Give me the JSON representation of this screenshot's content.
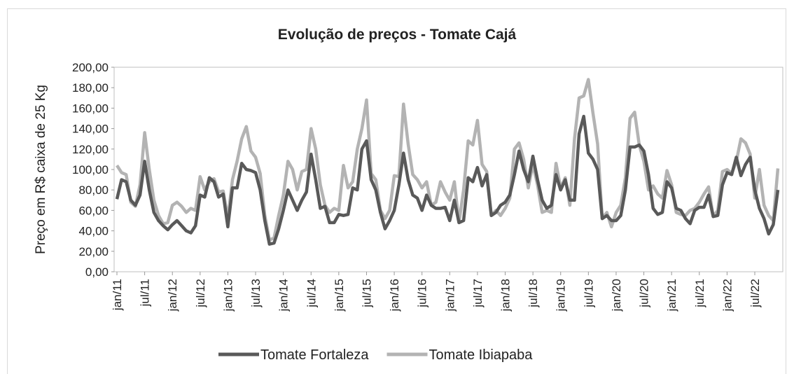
{
  "chart_data": {
    "type": "line",
    "title": "Evolução de preços - Tomate Cajá",
    "y_label": "Preço em R$ caixa de 25 Kg",
    "categories": [
      "jan/11",
      null,
      null,
      null,
      null,
      null,
      "jul/11",
      null,
      null,
      null,
      null,
      null,
      "jan/12",
      null,
      null,
      null,
      null,
      null,
      "jul/12",
      null,
      null,
      null,
      null,
      null,
      "jan/13",
      null,
      null,
      null,
      null,
      null,
      "jul/13",
      null,
      null,
      null,
      null,
      null,
      "jan/14",
      null,
      null,
      null,
      null,
      null,
      "jul/14",
      null,
      null,
      null,
      null,
      null,
      "jan/15",
      null,
      null,
      null,
      null,
      null,
      "jul/15",
      null,
      null,
      null,
      null,
      null,
      "jan/16",
      null,
      null,
      null,
      null,
      null,
      "jul/16",
      null,
      null,
      null,
      null,
      null,
      "jan/17",
      null,
      null,
      null,
      null,
      null,
      "jul/17",
      null,
      null,
      null,
      null,
      null,
      "jan/18",
      null,
      null,
      null,
      null,
      null,
      "jul/18",
      null,
      null,
      null,
      null,
      null,
      "jan/19",
      null,
      null,
      null,
      null,
      null,
      "jul/19",
      null,
      null,
      null,
      null,
      null,
      "jan/20",
      null,
      null,
      null,
      null,
      null,
      "jul/20",
      null,
      null,
      null,
      null,
      null,
      "jan/21",
      null,
      null,
      null,
      null,
      null,
      "jul/21",
      null,
      null,
      null,
      null,
      null,
      "jan/22",
      null,
      null,
      null,
      null,
      null,
      "jul/22",
      null,
      null,
      null,
      null,
      null
    ],
    "series": [
      {
        "name": "Tomate Fortaleza",
        "color": "#595959",
        "values": [
          71,
          90,
          88,
          70,
          65,
          75,
          108,
          80,
          58,
          50,
          45,
          41,
          46,
          50,
          45,
          40,
          38,
          45,
          75,
          73,
          92,
          88,
          73,
          76,
          44,
          82,
          82,
          106,
          100,
          99,
          97,
          80,
          50,
          27,
          28,
          42,
          60,
          80,
          70,
          60,
          70,
          78,
          115,
          90,
          62,
          64,
          48,
          48,
          56,
          55,
          56,
          82,
          80,
          120,
          128,
          90,
          80,
          58,
          42,
          50,
          60,
          85,
          116,
          90,
          75,
          72,
          60,
          75,
          65,
          62,
          62,
          63,
          50,
          70,
          48,
          50,
          92,
          88,
          102,
          84,
          95,
          55,
          58,
          65,
          68,
          75,
          95,
          118,
          100,
          88,
          113,
          90,
          70,
          62,
          65,
          95,
          80,
          90,
          70,
          70,
          135,
          152,
          116,
          110,
          100,
          52,
          55,
          50,
          50,
          55,
          80,
          122,
          122,
          124,
          118,
          95,
          62,
          56,
          58,
          88,
          82,
          62,
          60,
          52,
          47,
          60,
          63,
          63,
          75,
          54,
          55,
          85,
          97,
          95,
          112,
          94,
          105,
          112,
          80,
          62,
          52,
          37,
          46,
          80
        ]
      },
      {
        "name": "Tomate Ibiapaba",
        "color": "#b3b3b3",
        "values": [
          104,
          97,
          95,
          68,
          64,
          85,
          136,
          100,
          70,
          55,
          47,
          48,
          65,
          68,
          64,
          58,
          62,
          60,
          93,
          80,
          88,
          91,
          78,
          79,
          52,
          90,
          108,
          130,
          142,
          118,
          112,
          96,
          55,
          31,
          33,
          55,
          75,
          108,
          100,
          80,
          98,
          100,
          140,
          120,
          85,
          65,
          58,
          62,
          60,
          104,
          82,
          88,
          120,
          140,
          168,
          96,
          90,
          60,
          52,
          60,
          94,
          93,
          164,
          125,
          95,
          90,
          82,
          88,
          65,
          68,
          88,
          78,
          70,
          88,
          48,
          80,
          128,
          124,
          148,
          105,
          98,
          55,
          60,
          55,
          62,
          72,
          120,
          126,
          110,
          82,
          105,
          85,
          58,
          60,
          58,
          106,
          82,
          92,
          65,
          130,
          170,
          172,
          188,
          155,
          125,
          52,
          58,
          44,
          58,
          65,
          92,
          150,
          156,
          124,
          108,
          80,
          84,
          76,
          72,
          99,
          85,
          58,
          56,
          55,
          60,
          62,
          68,
          76,
          83,
          54,
          60,
          98,
          100,
          96,
          108,
          130,
          126,
          115,
          72,
          100,
          65,
          55,
          50,
          101
        ]
      }
    ],
    "ylim": [
      0,
      200
    ],
    "yticks": [
      {
        "value": 0,
        "label": "0,00"
      },
      {
        "value": 20,
        "label": "20,00"
      },
      {
        "value": 40,
        "label": "40,00"
      },
      {
        "value": 60,
        "label": "60,00"
      },
      {
        "value": 80,
        "label": "80,00"
      },
      {
        "value": 100,
        "label": "100,00"
      },
      {
        "value": 120,
        "label": "120,00"
      },
      {
        "value": 140,
        "label": "140,00"
      },
      {
        "value": 160,
        "label": "160,00"
      },
      {
        "value": 180,
        "label": "180,00"
      },
      {
        "value": 200,
        "label": "200,00"
      }
    ],
    "legend": "bottom"
  }
}
